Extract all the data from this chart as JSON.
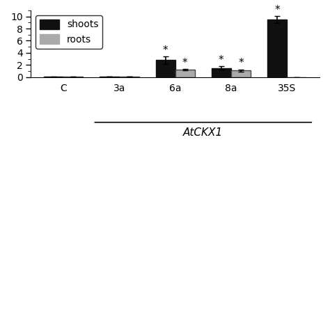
{
  "groups": [
    "C",
    "3a",
    "6a",
    "8a",
    "35S"
  ],
  "shoots": [
    0.02,
    0.04,
    2.8,
    1.5,
    9.5
  ],
  "roots": [
    0.02,
    0.05,
    1.2,
    1.1,
    0.0
  ],
  "shoots_err": [
    0.01,
    0.01,
    0.6,
    0.25,
    0.55
  ],
  "roots_err": [
    0.01,
    0.01,
    0.12,
    0.18,
    0.0
  ],
  "shoots_color": "#111111",
  "roots_color": "#aaaaaa",
  "bar_width": 0.35,
  "ylim": [
    0,
    11
  ],
  "yticks": [
    0,
    2,
    4,
    6,
    8,
    10
  ],
  "legend_labels": [
    "shoots",
    "roots"
  ],
  "atckx1_label": "AtCKX1",
  "significance_shoots": [
    false,
    false,
    true,
    true,
    true
  ],
  "significance_roots": [
    false,
    false,
    true,
    true,
    false
  ],
  "background_color": "#ffffff",
  "spine_color": "#000000",
  "tick_fontsize": 10,
  "label_fontsize": 11,
  "legend_fontsize": 10
}
